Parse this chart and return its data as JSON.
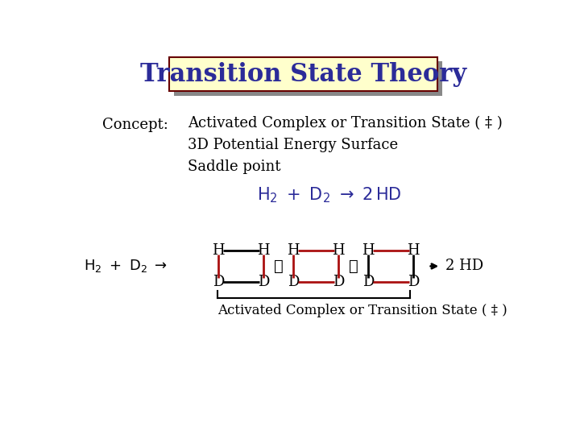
{
  "title": "Transition State Theory",
  "title_color": "#2b2b99",
  "title_bg": "#ffffcc",
  "title_border": "#660000",
  "shadow_color": "#888888",
  "bg_color": "#ffffff",
  "concept_label": "Concept:",
  "line1": "Activated Complex or Transition State ( ‡ )",
  "line2": "3D Potential Energy Surface",
  "line3": "Saddle point",
  "reaction_eq_color": "#2b2b99",
  "bottom_label": "Activated Complex or Transition State ( ‡ )",
  "black": "#000000",
  "red": "#aa1111"
}
